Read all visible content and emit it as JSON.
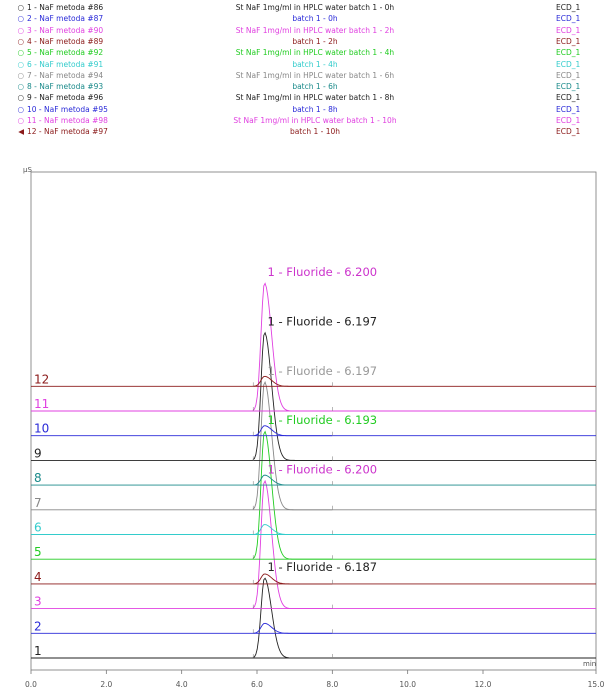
{
  "legend": [
    {
      "marker": "○",
      "name": "1 - NaF metoda #86",
      "desc": "St NaF 1mg/ml in HPLC water batch 1 - 0h",
      "detector": "ECD_1",
      "color": "#222222"
    },
    {
      "marker": "○",
      "name": "2 - NaF metoda #87",
      "desc": "batch 1 - 0h",
      "detector": "ECD_1",
      "color": "#2a2ad8"
    },
    {
      "marker": "○",
      "name": "3 - NaF metoda #90",
      "desc": "St NaF 1mg/ml in HPLC water batch 1 - 2h",
      "detector": "ECD_1",
      "color": "#e040e0"
    },
    {
      "marker": "○",
      "name": "4 - NaF metoda #89",
      "desc": "batch 1 - 2h",
      "detector": "ECD_1",
      "color": "#8b1a1a"
    },
    {
      "marker": "○",
      "name": "5 - NaF metoda #92",
      "desc": "St NaF 1mg/ml in HPLC water batch 1 - 4h",
      "detector": "ECD_1",
      "color": "#22cc22"
    },
    {
      "marker": "○",
      "name": "6 - NaF metoda #91",
      "desc": "batch 1 - 4h",
      "detector": "ECD_1",
      "color": "#33cccc"
    },
    {
      "marker": "○",
      "name": "7 - NaF metoda #94",
      "desc": "St NaF 1mg/ml in HPLC water batch 1 - 6h",
      "detector": "ECD_1",
      "color": "#888888"
    },
    {
      "marker": "○",
      "name": "8 - NaF metoda #93",
      "desc": "batch 1 - 6h",
      "detector": "ECD_1",
      "color": "#1a8a8a"
    },
    {
      "marker": "○",
      "name": "9 - NaF metoda #96",
      "desc": "St NaF 1mg/ml in HPLC water batch 1 - 8h",
      "detector": "ECD_1",
      "color": "#222222"
    },
    {
      "marker": "○",
      "name": "10 - NaF metoda #95",
      "desc": "batch 1 - 8h",
      "detector": "ECD_1",
      "color": "#2a2ad8"
    },
    {
      "marker": "○",
      "name": "11 - NaF metoda #98",
      "desc": "St NaF 1mg/ml in HPLC water batch 1 - 10h",
      "detector": "ECD_1",
      "color": "#e040e0"
    },
    {
      "marker": "◀",
      "name": "12 - NaF metoda #97",
      "desc": "batch 1 - 10h",
      "detector": "ECD_1",
      "color": "#8b1a1a"
    }
  ],
  "chart_data": {
    "type": "line",
    "ylabel": "µS",
    "xunit": "min",
    "xlim": [
      0.0,
      15.0
    ],
    "xticks": [
      "0.0",
      "2.0",
      "4.0",
      "6.0",
      "8.0",
      "10.0",
      "12.0",
      "15.0"
    ],
    "xtick_values": [
      0,
      2,
      4,
      6,
      8,
      10,
      12,
      15
    ],
    "peak_start": 5.9,
    "peak_end": 8.0,
    "series": [
      {
        "label": "1",
        "color": "#222222",
        "peak_rt": 6.2,
        "peak_height": 80
      },
      {
        "label": "2",
        "color": "#2a2ad8",
        "peak_rt": 6.2,
        "peak_height": 0
      },
      {
        "label": "3",
        "color": "#e040e0",
        "peak_rt": 6.2,
        "peak_height": 128
      },
      {
        "label": "4",
        "color": "#8b1a1a",
        "peak_rt": 6.2,
        "peak_height": 0
      },
      {
        "label": "5",
        "color": "#22cc22",
        "peak_rt": 6.2,
        "peak_height": 128
      },
      {
        "label": "6",
        "color": "#33cccc",
        "peak_rt": 6.2,
        "peak_height": 0
      },
      {
        "label": "7",
        "color": "#888888",
        "peak_rt": 6.2,
        "peak_height": 128
      },
      {
        "label": "8",
        "color": "#1a8a8a",
        "peak_rt": 6.2,
        "peak_height": 0
      },
      {
        "label": "9",
        "color": "#222222",
        "peak_rt": 6.2,
        "peak_height": 128
      },
      {
        "label": "10",
        "color": "#2a2ad8",
        "peak_rt": 6.2,
        "peak_height": 0
      },
      {
        "label": "11",
        "color": "#e040e0",
        "peak_rt": 6.2,
        "peak_height": 128
      },
      {
        "label": "12",
        "color": "#8b1a1a",
        "peak_rt": 6.2,
        "peak_height": 0
      }
    ],
    "annotations": [
      {
        "text": "1 - Fluoride - 6.200",
        "color": "#cc33cc",
        "series": "11"
      },
      {
        "text": "1 - Fluoride - 6.197",
        "color": "#222222",
        "series": "9"
      },
      {
        "text": "1 - Fluoride - 6.197",
        "color": "#999999",
        "series": "7"
      },
      {
        "text": "1 - Fluoride - 6.193",
        "color": "#22cc22",
        "series": "5"
      },
      {
        "text": "1 - Fluoride - 6.200",
        "color": "#cc33cc",
        "series": "3"
      },
      {
        "text": "1 - Fluoride - 6.187",
        "color": "#222222",
        "series": "1"
      }
    ]
  }
}
